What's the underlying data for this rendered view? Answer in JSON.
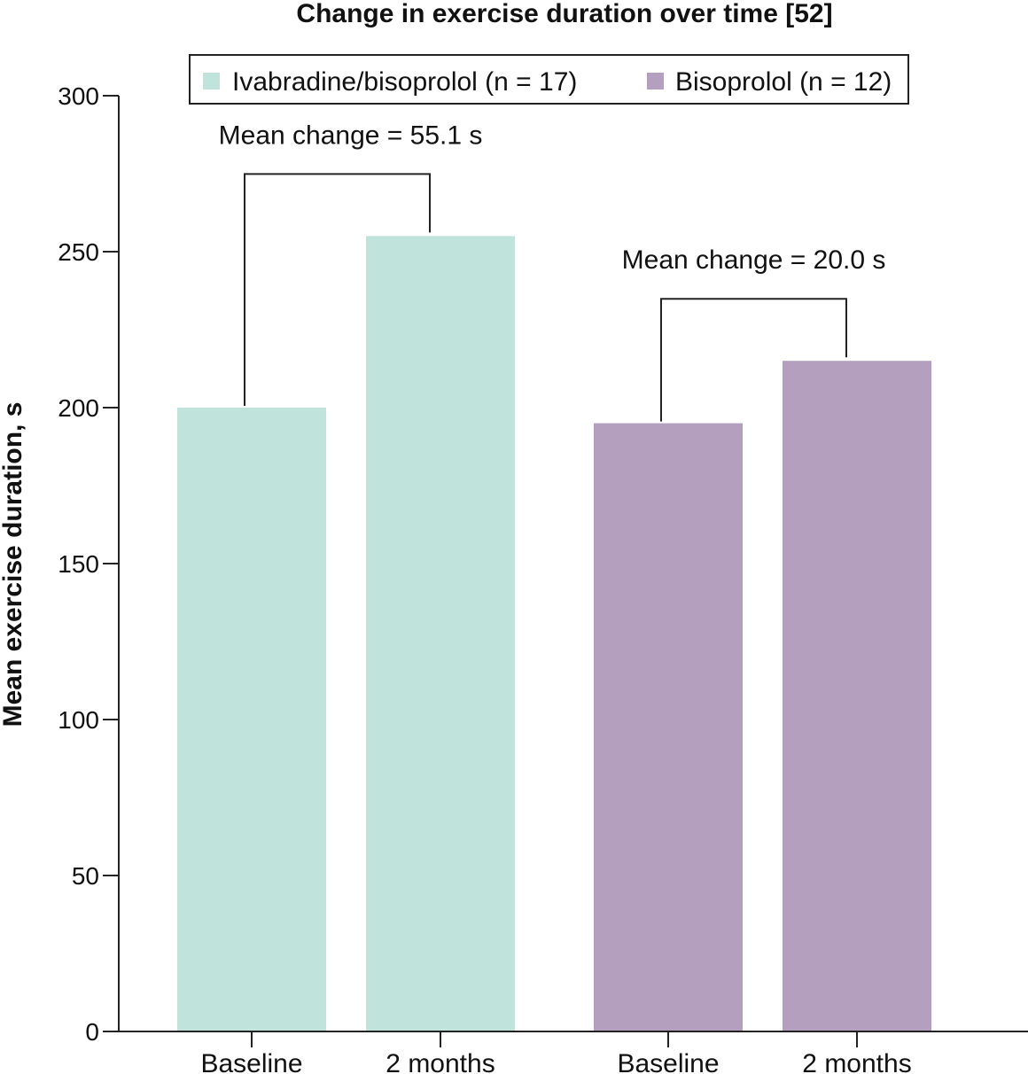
{
  "chart_data": {
    "type": "bar",
    "title": "Change in exercise duration over time [52]",
    "xlabel": "",
    "ylabel": "Mean exercise duration, s",
    "ylim": [
      0,
      300
    ],
    "yticks": [
      0,
      50,
      100,
      150,
      200,
      250,
      300
    ],
    "legend_position": "top",
    "grid": false,
    "series": [
      {
        "name": "Ivabradine/bisoprolol (n = 17)",
        "color": "#c0e4dc",
        "categories": [
          "Baseline",
          "2 months"
        ],
        "values": [
          200,
          255
        ],
        "annotation": "Mean change = 55.1 s"
      },
      {
        "name": "Bisoprolol (n = 12)",
        "color": "#b4a0be",
        "categories": [
          "Baseline",
          "2 months"
        ],
        "values": [
          195,
          215
        ],
        "annotation": "Mean change = 20.0 s"
      }
    ]
  }
}
